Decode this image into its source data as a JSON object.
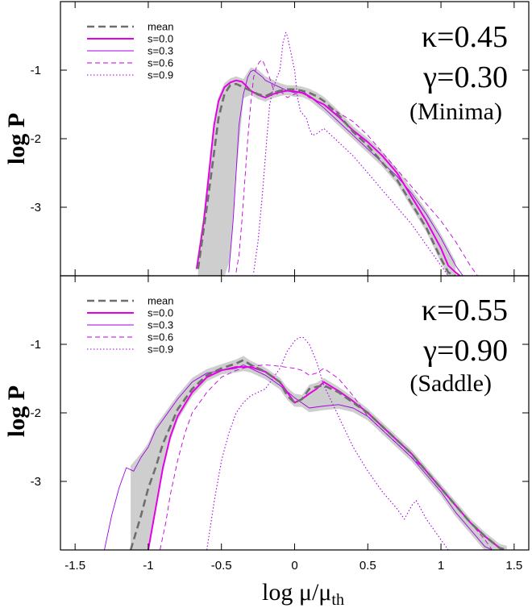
{
  "chart_data": {
    "type": "line",
    "xlabel": "log μ/μ",
    "xlabel_sub": "th",
    "xlim": [
      -1.6,
      1.6
    ],
    "xticks": [
      -1.5,
      -1,
      -0.5,
      0,
      0.5,
      1,
      1.5
    ],
    "xtick_labels": [
      "-1.5",
      "-1",
      "-0.5",
      "0",
      "0.5",
      "1",
      "1.5"
    ],
    "styles": {
      "mean": {
        "color": "#6e6e6e",
        "dash": "9,5",
        "width": 2.6
      },
      "s=0.0": {
        "color": "#e600e6",
        "dash": "",
        "width": 2
      },
      "s=0.3": {
        "color": "#a000e6",
        "dash": "",
        "width": 0.9
      },
      "s=0.6": {
        "color": "#c000d8",
        "dash": "6,4",
        "width": 0.9
      },
      "s=0.9": {
        "color": "#a000e6",
        "dash": "1.5,2.5",
        "width": 1.1
      },
      "band": "#bdbdbd"
    },
    "panels": [
      {
        "ylabel": "log P",
        "ylim": [
          -4.0,
          0.0
        ],
        "yticks": [
          -1,
          -2,
          -3
        ],
        "ytick_labels": [
          "-1",
          "-2",
          "-3"
        ],
        "legend": [
          "mean",
          "s=0.0",
          "s=0.3",
          "s=0.6",
          "s=0.9"
        ],
        "annotation": {
          "kappa": "κ=0.45",
          "gamma": "γ=0.30",
          "label": "(Minima)"
        },
        "series": [
          {
            "name": "mean",
            "x": [
              -0.66,
              -0.6,
              -0.55,
              -0.52,
              -0.48,
              -0.44,
              -0.4,
              -0.35,
              -0.3,
              -0.25,
              -0.2,
              -0.15,
              -0.1,
              -0.05,
              0,
              0.05,
              0.1,
              0.15,
              0.2,
              0.3,
              0.4,
              0.5,
              0.6,
              0.7,
              0.8,
              0.9,
              1.0,
              1.05,
              1.1
            ],
            "y": [
              -3.9,
              -3.0,
              -2.2,
              -1.7,
              -1.35,
              -1.22,
              -1.2,
              -1.25,
              -1.3,
              -1.35,
              -1.38,
              -1.33,
              -1.3,
              -1.28,
              -1.28,
              -1.3,
              -1.33,
              -1.38,
              -1.45,
              -1.65,
              -1.9,
              -2.1,
              -2.35,
              -2.6,
              -2.95,
              -3.3,
              -3.75,
              -3.95,
              -4.0
            ]
          },
          {
            "name": "s=0.0",
            "x": [
              -0.67,
              -0.62,
              -0.58,
              -0.55,
              -0.52,
              -0.48,
              -0.44,
              -0.4,
              -0.36,
              -0.33,
              -0.3,
              -0.25,
              -0.2,
              -0.15,
              -0.1,
              -0.05,
              0,
              0.05,
              0.1,
              0.15,
              0.2,
              0.3,
              0.4,
              0.5,
              0.6,
              0.7,
              0.8,
              0.9,
              1.0,
              1.05,
              1.1,
              1.13
            ],
            "y": [
              -3.9,
              -3.2,
              -2.4,
              -1.8,
              -1.45,
              -1.25,
              -1.18,
              -1.15,
              -1.17,
              -1.23,
              -1.3,
              -1.36,
              -1.4,
              -1.35,
              -1.32,
              -1.3,
              -1.31,
              -1.33,
              -1.38,
              -1.45,
              -1.5,
              -1.68,
              -1.88,
              -2.05,
              -2.25,
              -2.5,
              -2.85,
              -3.2,
              -3.6,
              -3.85,
              -3.95,
              -4.0
            ]
          },
          {
            "name": "s=0.3",
            "x": [
              -0.45,
              -0.42,
              -0.4,
              -0.38,
              -0.35,
              -0.32,
              -0.3,
              -0.28,
              -0.25,
              -0.22,
              -0.2,
              -0.15,
              -0.1,
              -0.05,
              0,
              0.05,
              0.1,
              0.2,
              0.3,
              0.4,
              0.5,
              0.6,
              0.7,
              0.8,
              0.9,
              1.0,
              1.1,
              1.15
            ],
            "y": [
              -3.95,
              -3.2,
              -2.5,
              -1.8,
              -1.35,
              -1.1,
              -1.02,
              -1.0,
              -1.05,
              -1.1,
              -1.15,
              -1.2,
              -1.25,
              -1.3,
              -1.33,
              -1.3,
              -1.38,
              -1.55,
              -1.75,
              -1.95,
              -2.15,
              -2.35,
              -2.55,
              -2.8,
              -3.1,
              -3.45,
              -3.85,
              -4.0
            ]
          },
          {
            "name": "s=0.6",
            "x": [
              -0.4,
              -0.38,
              -0.36,
              -0.34,
              -0.32,
              -0.3,
              -0.28,
              -0.26,
              -0.24,
              -0.22,
              -0.2,
              -0.18,
              -0.15,
              -0.12,
              -0.1,
              -0.05,
              0,
              0.05,
              0.1,
              0.2,
              0.3,
              0.4,
              0.5,
              0.6,
              0.7,
              0.8,
              0.9,
              1.0,
              1.1,
              1.2,
              1.25
            ],
            "y": [
              -3.95,
              -3.7,
              -3.2,
              -2.6,
              -2.0,
              -1.5,
              -1.1,
              -0.95,
              -0.88,
              -0.85,
              -0.95,
              -1.05,
              -1.25,
              -1.35,
              -1.3,
              -1.4,
              -1.35,
              -1.32,
              -1.4,
              -1.5,
              -1.62,
              -1.75,
              -1.95,
              -2.2,
              -2.45,
              -2.7,
              -2.95,
              -3.2,
              -3.5,
              -3.85,
              -4.0
            ]
          },
          {
            "name": "s=0.9",
            "x": [
              -0.28,
              -0.25,
              -0.22,
              -0.19,
              -0.17,
              -0.15,
              -0.12,
              -0.1,
              -0.08,
              -0.06,
              -0.05,
              -0.03,
              0,
              0.02,
              0.04,
              0.06,
              0.08,
              0.1,
              0.12,
              0.15,
              0.18,
              0.2,
              0.25,
              0.3,
              0.4,
              0.5,
              0.6,
              0.7,
              0.8,
              0.9,
              1.0,
              1.05
            ],
            "y": [
              -3.95,
              -3.5,
              -2.8,
              -2.0,
              -1.5,
              -1.3,
              -1.1,
              -1.0,
              -0.6,
              -0.45,
              -0.5,
              -0.7,
              -1.0,
              -1.4,
              -1.6,
              -1.65,
              -1.7,
              -1.85,
              -1.95,
              -1.93,
              -1.88,
              -1.85,
              -1.95,
              -2.05,
              -2.25,
              -2.5,
              -2.75,
              -3.0,
              -3.25,
              -3.55,
              -3.85,
              -4.0
            ]
          }
        ]
      },
      {
        "ylabel": "log P",
        "ylim": [
          -4.0,
          0.0
        ],
        "yticks": [
          -1,
          -2,
          -3
        ],
        "ytick_labels": [
          "-1",
          "-2",
          "-3"
        ],
        "legend": [
          "mean",
          "s=0.0",
          "s=0.3",
          "s=0.6",
          "s=0.9"
        ],
        "annotation": {
          "kappa": "κ=0.55",
          "gamma": "γ=0.90",
          "label": "(Saddle)"
        },
        "series": [
          {
            "name": "mean",
            "x": [
              -1.12,
              -1.05,
              -1.0,
              -0.95,
              -0.9,
              -0.85,
              -0.8,
              -0.7,
              -0.6,
              -0.5,
              -0.4,
              -0.35,
              -0.3,
              -0.2,
              -0.1,
              -0.05,
              0,
              0.05,
              0.1,
              0.15,
              0.2,
              0.3,
              0.4,
              0.5,
              0.6,
              0.7,
              0.8,
              0.9,
              1.0,
              1.1,
              1.2,
              1.3,
              1.4,
              1.45
            ],
            "y": [
              -4.0,
              -3.5,
              -3.1,
              -2.8,
              -2.45,
              -2.2,
              -1.95,
              -1.65,
              -1.45,
              -1.35,
              -1.28,
              -1.23,
              -1.3,
              -1.4,
              -1.55,
              -1.75,
              -1.85,
              -1.8,
              -1.65,
              -1.62,
              -1.6,
              -1.7,
              -1.85,
              -2.0,
              -2.2,
              -2.4,
              -2.6,
              -2.85,
              -3.1,
              -3.35,
              -3.6,
              -3.8,
              -3.97,
              -4.0
            ]
          },
          {
            "name": "s=0.0",
            "x": [
              -1.0,
              -0.95,
              -0.9,
              -0.85,
              -0.8,
              -0.7,
              -0.6,
              -0.5,
              -0.4,
              -0.3,
              -0.2,
              -0.1,
              -0.05,
              0,
              0.05,
              0.1,
              0.15,
              0.2,
              0.3,
              0.4,
              0.5,
              0.6,
              0.7,
              0.8,
              0.9,
              1.0,
              1.1,
              1.2,
              1.3,
              1.4,
              1.42
            ],
            "y": [
              -4.0,
              -3.4,
              -2.8,
              -2.35,
              -2.05,
              -1.7,
              -1.48,
              -1.38,
              -1.33,
              -1.33,
              -1.4,
              -1.55,
              -1.7,
              -1.85,
              -1.8,
              -1.72,
              -1.65,
              -1.55,
              -1.68,
              -1.83,
              -2.0,
              -2.2,
              -2.4,
              -2.6,
              -2.85,
              -3.1,
              -3.35,
              -3.6,
              -3.8,
              -3.97,
              -4.0
            ]
          },
          {
            "name": "s=0.3",
            "x": [
              -1.3,
              -1.25,
              -1.2,
              -1.15,
              -1.1,
              -1.05,
              -1.0,
              -0.95,
              -0.9,
              -0.8,
              -0.7,
              -0.6,
              -0.5,
              -0.4,
              -0.35,
              -0.3,
              -0.2,
              -0.1,
              0,
              0.1,
              0.2,
              0.3,
              0.4,
              0.5,
              0.6,
              0.7,
              0.8,
              0.9,
              1.0,
              1.1,
              1.2,
              1.3,
              1.35
            ],
            "y": [
              -4.0,
              -3.5,
              -3.1,
              -2.8,
              -2.85,
              -2.65,
              -2.5,
              -2.25,
              -2.1,
              -1.8,
              -1.55,
              -1.42,
              -1.38,
              -1.35,
              -1.3,
              -1.35,
              -1.45,
              -1.6,
              -1.78,
              -1.93,
              -1.9,
              -1.88,
              -1.93,
              -2.05,
              -2.25,
              -2.45,
              -2.65,
              -2.9,
              -3.15,
              -3.45,
              -3.7,
              -3.95,
              -4.0
            ]
          },
          {
            "name": "s=0.6",
            "x": [
              -0.92,
              -0.88,
              -0.85,
              -0.8,
              -0.75,
              -0.7,
              -0.6,
              -0.5,
              -0.4,
              -0.3,
              -0.2,
              -0.1,
              0,
              0.05,
              0.1,
              0.15,
              0.2,
              0.3,
              0.4,
              0.5,
              0.6,
              0.7,
              0.8,
              0.9,
              1.0,
              1.1,
              1.2,
              1.3,
              1.35
            ],
            "y": [
              -4.0,
              -3.6,
              -3.2,
              -2.7,
              -2.3,
              -2.0,
              -1.7,
              -1.48,
              -1.38,
              -1.32,
              -1.3,
              -1.32,
              -1.35,
              -1.38,
              -1.45,
              -1.42,
              -1.35,
              -1.5,
              -1.75,
              -2.05,
              -2.25,
              -2.45,
              -2.65,
              -2.85,
              -3.1,
              -3.35,
              -3.6,
              -3.85,
              -4.0
            ]
          },
          {
            "name": "s=0.9",
            "x": [
              -0.6,
              -0.55,
              -0.5,
              -0.45,
              -0.4,
              -0.35,
              -0.3,
              -0.2,
              -0.15,
              -0.1,
              -0.05,
              0,
              0.03,
              0.06,
              0.1,
              0.15,
              0.2,
              0.3,
              0.4,
              0.5,
              0.6,
              0.7,
              0.75,
              0.8,
              0.83,
              0.85,
              0.9,
              1.0,
              1.05
            ],
            "y": [
              -4.0,
              -3.3,
              -2.7,
              -2.3,
              -2.0,
              -1.85,
              -1.75,
              -1.65,
              -1.5,
              -1.35,
              -1.1,
              -0.95,
              -0.9,
              -0.9,
              -1.0,
              -1.25,
              -1.6,
              -2.05,
              -2.5,
              -2.85,
              -3.15,
              -3.4,
              -3.55,
              -3.35,
              -3.28,
              -3.35,
              -3.55,
              -3.85,
              -4.0
            ]
          }
        ]
      }
    ]
  }
}
